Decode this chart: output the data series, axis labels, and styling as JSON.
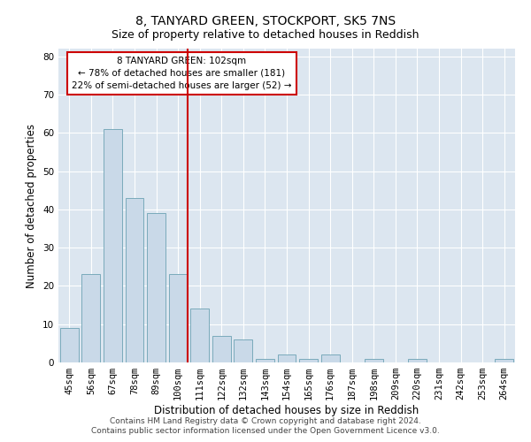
{
  "title": "8, TANYARD GREEN, STOCKPORT, SK5 7NS",
  "subtitle": "Size of property relative to detached houses in Reddish",
  "xlabel": "Distribution of detached houses by size in Reddish",
  "ylabel": "Number of detached properties",
  "categories": [
    "45sqm",
    "56sqm",
    "67sqm",
    "78sqm",
    "89sqm",
    "100sqm",
    "111sqm",
    "122sqm",
    "132sqm",
    "143sqm",
    "154sqm",
    "165sqm",
    "176sqm",
    "187sqm",
    "198sqm",
    "209sqm",
    "220sqm",
    "231sqm",
    "242sqm",
    "253sqm",
    "264sqm"
  ],
  "values": [
    9,
    23,
    61,
    43,
    39,
    23,
    14,
    7,
    6,
    1,
    2,
    1,
    2,
    0,
    1,
    0,
    1,
    0,
    0,
    0,
    1
  ],
  "bar_color": "#c9d9e8",
  "bar_edge_color": "#7aaabb",
  "highlight_index": 5,
  "vline_color": "#cc0000",
  "annotation_text": "8 TANYARD GREEN: 102sqm\n← 78% of detached houses are smaller (181)\n22% of semi-detached houses are larger (52) →",
  "annotation_box_facecolor": "#ffffff",
  "annotation_box_edgecolor": "#cc0000",
  "ylim": [
    0,
    82
  ],
  "yticks": [
    0,
    10,
    20,
    30,
    40,
    50,
    60,
    70,
    80
  ],
  "background_color": "#dce6f0",
  "footer_line1": "Contains HM Land Registry data © Crown copyright and database right 2024.",
  "footer_line2": "Contains public sector information licensed under the Open Government Licence v3.0.",
  "title_fontsize": 10,
  "subtitle_fontsize": 9,
  "xlabel_fontsize": 8.5,
  "ylabel_fontsize": 8.5,
  "tick_fontsize": 7.5,
  "annotation_fontsize": 7.5
}
